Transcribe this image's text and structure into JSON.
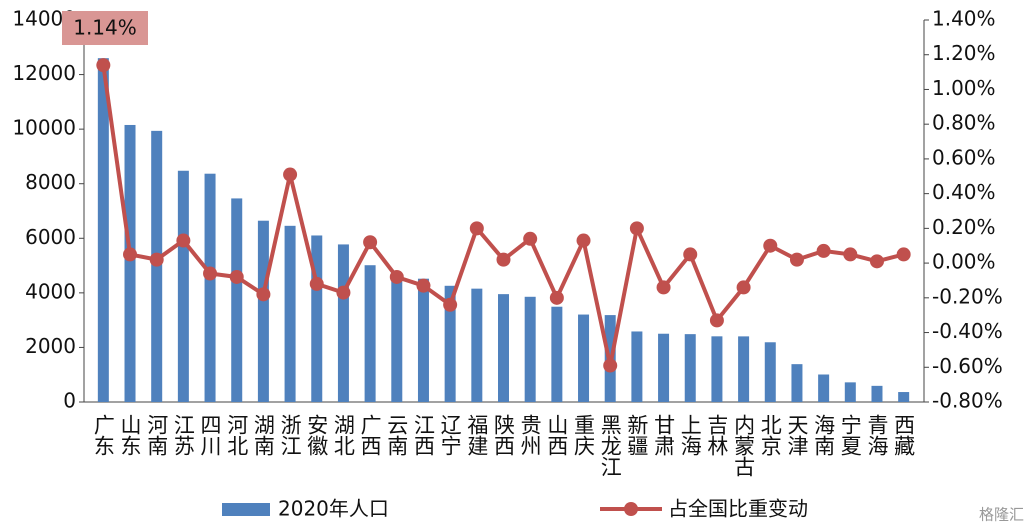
{
  "chart_data": {
    "type": "bar-line",
    "categories": [
      "广东",
      "山东",
      "河南",
      "江苏",
      "四川",
      "河北",
      "湖南",
      "浙江",
      "安徽",
      "湖北",
      "广西",
      "云南",
      "江西",
      "辽宁",
      "福建",
      "陕西",
      "贵州",
      "山西",
      "重庆",
      "黑龙江",
      "新疆",
      "甘肃",
      "上海",
      "吉林",
      "内蒙古",
      "北京",
      "天津",
      "海南",
      "宁夏",
      "青海",
      "西藏"
    ],
    "series": [
      {
        "name": "2020年人口",
        "type": "bar",
        "color": "#4f81bd",
        "values": [
          12601,
          10153,
          9937,
          8475,
          8367,
          7461,
          6644,
          6457,
          6103,
          5775,
          5013,
          4721,
          4519,
          4259,
          4154,
          3953,
          3856,
          3492,
          3205,
          3185,
          2585,
          2502,
          2487,
          2407,
          2405,
          2189,
          1387,
          1008,
          720,
          592,
          365
        ]
      },
      {
        "name": "占全国比重变动",
        "type": "line",
        "axis": "y2",
        "color": "#c0504d",
        "values": [
          1.14,
          0.05,
          0.02,
          0.13,
          -0.06,
          -0.08,
          -0.18,
          0.51,
          -0.12,
          -0.17,
          0.12,
          -0.08,
          -0.13,
          -0.24,
          0.2,
          0.02,
          0.14,
          -0.2,
          0.13,
          -0.59,
          0.2,
          -0.14,
          0.05,
          -0.33,
          -0.14,
          0.1,
          0.02,
          0.07,
          0.05,
          0.01,
          0.05
        ]
      }
    ],
    "annotation": "1.14%",
    "ylim": [
      0,
      14000
    ],
    "yticks": [
      0,
      2000,
      4000,
      6000,
      8000,
      10000,
      12000,
      14000
    ],
    "y2lim": [
      -0.8,
      1.4
    ],
    "y2ticks": [
      {
        "value": -0.8,
        "label": "-0.80%"
      },
      {
        "value": -0.6,
        "label": "-0.60%"
      },
      {
        "value": -0.4,
        "label": "-0.40%"
      },
      {
        "value": -0.2,
        "label": "-0.20%"
      },
      {
        "value": 0,
        "label": "0.00%"
      },
      {
        "value": 0.2,
        "label": "0.20%"
      },
      {
        "value": 0.4,
        "label": "0.40%"
      },
      {
        "value": 0.6,
        "label": "0.60%"
      },
      {
        "value": 0.8,
        "label": "0.80%"
      },
      {
        "value": 1.0,
        "label": "1.00%"
      },
      {
        "value": 1.2,
        "label": "1.20%"
      },
      {
        "value": 1.4,
        "label": "1.40%"
      }
    ],
    "legend": "bottom",
    "watermark": "格隆汇"
  }
}
